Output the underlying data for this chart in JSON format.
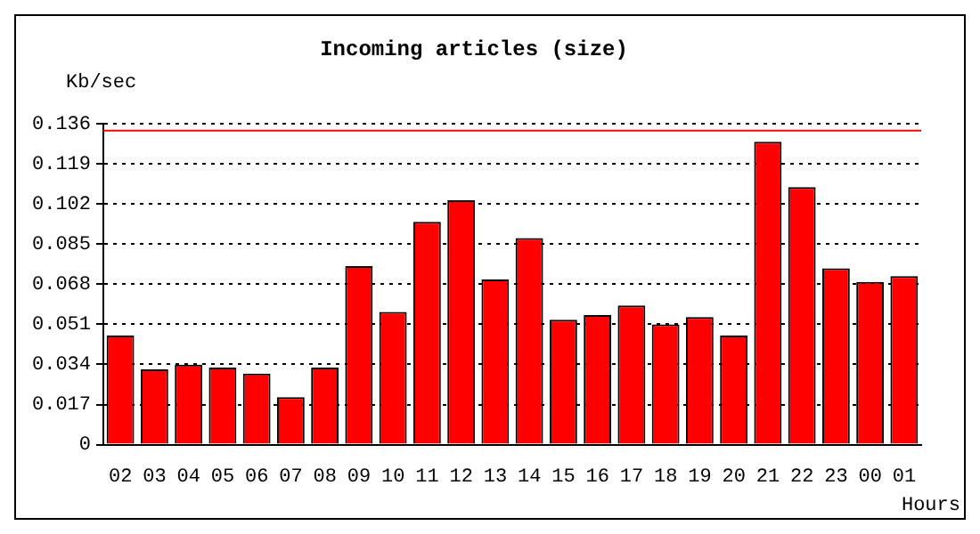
{
  "chart_data": {
    "type": "bar",
    "title": "Incoming articles (size)",
    "xlabel": "Hours",
    "ylabel": "Kb/sec",
    "categories": [
      "02",
      "03",
      "04",
      "05",
      "06",
      "07",
      "08",
      "09",
      "10",
      "11",
      "12",
      "13",
      "14",
      "15",
      "16",
      "17",
      "18",
      "19",
      "20",
      "21",
      "22",
      "23",
      "00",
      "01"
    ],
    "values": [
      0.0462,
      0.0319,
      0.0339,
      0.0326,
      0.0301,
      0.0201,
      0.0326,
      0.0756,
      0.0562,
      0.0944,
      0.1035,
      0.07,
      0.0875,
      0.0529,
      0.0549,
      0.0589,
      0.0509,
      0.054,
      0.0462,
      0.1283,
      0.1091,
      0.0747,
      0.0689,
      0.0714
    ],
    "color": "#ff0000",
    "ylim": [
      0,
      0.136
    ],
    "yticks": [
      {
        "value": 0,
        "label": "0"
      },
      0.017,
      0.034,
      0.051,
      0.068,
      0.085,
      0.102,
      0.119,
      0.136
    ],
    "ref_lines": [
      {
        "axis": "y",
        "value": 0.133,
        "color": "#ff0000"
      }
    ],
    "grid": "y",
    "line_style": "dotted",
    "legend": false
  }
}
